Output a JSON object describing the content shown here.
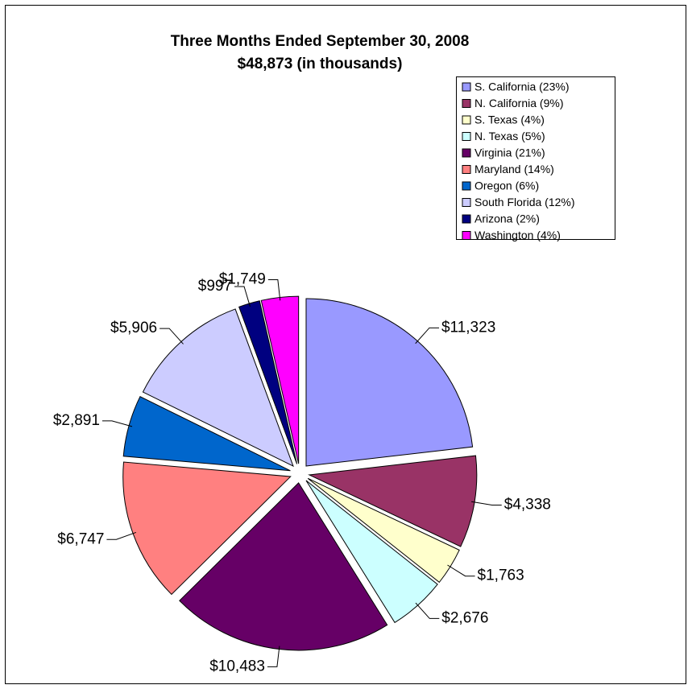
{
  "chart_data": {
    "type": "pie",
    "title": "Three Months Ended September 30, 2008",
    "subtitle": "$48,873 (in thousands)",
    "categories": [
      "S. California (23%)",
      "N. California (9%)",
      "S. Texas (4%)",
      "N. Texas (5%)",
      "Virginia (21%)",
      "Maryland (14%)",
      "Oregon (6%)",
      "South Florida (12%)",
      "Arizona (2%)",
      "Washington (4%)"
    ],
    "values": [
      11323,
      4338,
      1763,
      2676,
      10483,
      6747,
      2891,
      5906,
      997,
      1749
    ],
    "value_labels": [
      "$11,323",
      "$4,338",
      "$1,763",
      "$2,676",
      "$10,483",
      "$6,747",
      "$2,891",
      "$5,906",
      "$997",
      "$1,749"
    ],
    "colors": [
      "#9999ff",
      "#993366",
      "#ffffcc",
      "#ccffff",
      "#660066",
      "#ff8080",
      "#0066cc",
      "#ccccff",
      "#000080",
      "#ff00ff"
    ],
    "legend": "top-right"
  }
}
